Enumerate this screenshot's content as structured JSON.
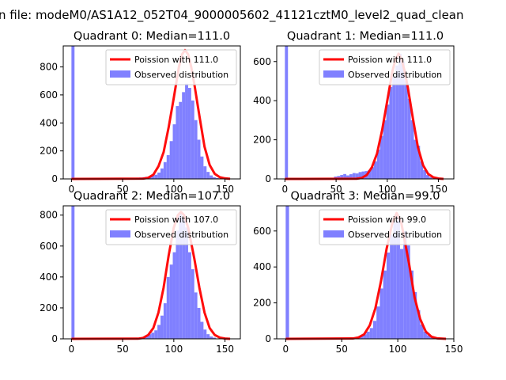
{
  "figure": {
    "suptitle": "n file: modeM0/AS1A12_052T04_9000005602_41121cztM0_level2_quad_clean"
  },
  "chart_data": [
    {
      "type": "histogram+line",
      "title": "Quadrant 0: Median=111.0",
      "median": 111.0,
      "xlim": [
        -8,
        165
      ],
      "ylim": [
        0,
        950
      ],
      "xticks": [
        0,
        50,
        100,
        150
      ],
      "yticks": [
        0,
        200,
        400,
        600,
        800
      ],
      "bin_width": 3,
      "hist": {
        "name": "Observed distribution",
        "color": "#8080ff",
        "bins": [
          {
            "x": 0,
            "y": 950
          },
          {
            "x": 63,
            "y": 8
          },
          {
            "x": 66,
            "y": 10
          },
          {
            "x": 69,
            "y": 12
          },
          {
            "x": 72,
            "y": 15
          },
          {
            "x": 75,
            "y": 18
          },
          {
            "x": 78,
            "y": 22
          },
          {
            "x": 81,
            "y": 30
          },
          {
            "x": 84,
            "y": 45
          },
          {
            "x": 87,
            "y": 75
          },
          {
            "x": 90,
            "y": 120
          },
          {
            "x": 93,
            "y": 170
          },
          {
            "x": 96,
            "y": 270
          },
          {
            "x": 99,
            "y": 390
          },
          {
            "x": 102,
            "y": 520
          },
          {
            "x": 105,
            "y": 550
          },
          {
            "x": 108,
            "y": 620
          },
          {
            "x": 111,
            "y": 680
          },
          {
            "x": 114,
            "y": 650
          },
          {
            "x": 117,
            "y": 560
          },
          {
            "x": 120,
            "y": 420
          },
          {
            "x": 123,
            "y": 280
          },
          {
            "x": 126,
            "y": 160
          },
          {
            "x": 129,
            "y": 90
          },
          {
            "x": 132,
            "y": 50
          },
          {
            "x": 135,
            "y": 25
          },
          {
            "x": 138,
            "y": 12
          },
          {
            "x": 141,
            "y": 6
          }
        ]
      },
      "curve": {
        "name": "Poission with 111.0",
        "color": "#ff0000",
        "x": [
          0,
          70,
          75,
          80,
          85,
          90,
          95,
          100,
          105,
          108,
          111,
          114,
          117,
          120,
          125,
          130,
          135,
          140,
          145,
          150,
          155
        ],
        "y": [
          0,
          2,
          8,
          30,
          90,
          190,
          370,
          580,
          800,
          890,
          920,
          890,
          800,
          680,
          450,
          230,
          100,
          36,
          12,
          4,
          1
        ]
      }
    },
    {
      "type": "histogram+line",
      "title": "Quadrant 1: Median=111.0",
      "median": 111.0,
      "xlim": [
        -8,
        165
      ],
      "ylim": [
        0,
        680
      ],
      "xticks": [
        0,
        50,
        100,
        150
      ],
      "yticks": [
        0,
        200,
        400,
        600
      ],
      "bin_width": 3,
      "hist": {
        "name": "Observed distribution",
        "color": "#8080ff",
        "bins": [
          {
            "x": 0,
            "y": 680
          },
          {
            "x": 48,
            "y": 12
          },
          {
            "x": 51,
            "y": 15
          },
          {
            "x": 54,
            "y": 20
          },
          {
            "x": 57,
            "y": 25
          },
          {
            "x": 60,
            "y": 18
          },
          {
            "x": 63,
            "y": 24
          },
          {
            "x": 66,
            "y": 30
          },
          {
            "x": 69,
            "y": 28
          },
          {
            "x": 72,
            "y": 35
          },
          {
            "x": 75,
            "y": 38
          },
          {
            "x": 78,
            "y": 40
          },
          {
            "x": 81,
            "y": 45
          },
          {
            "x": 84,
            "y": 60
          },
          {
            "x": 87,
            "y": 90
          },
          {
            "x": 90,
            "y": 150
          },
          {
            "x": 93,
            "y": 220
          },
          {
            "x": 96,
            "y": 300
          },
          {
            "x": 99,
            "y": 380
          },
          {
            "x": 102,
            "y": 470
          },
          {
            "x": 105,
            "y": 520
          },
          {
            "x": 108,
            "y": 580
          },
          {
            "x": 111,
            "y": 640
          },
          {
            "x": 114,
            "y": 600
          },
          {
            "x": 117,
            "y": 500
          },
          {
            "x": 120,
            "y": 410
          },
          {
            "x": 123,
            "y": 300
          },
          {
            "x": 126,
            "y": 200
          },
          {
            "x": 129,
            "y": 170
          },
          {
            "x": 132,
            "y": 90
          },
          {
            "x": 135,
            "y": 45
          },
          {
            "x": 138,
            "y": 20
          },
          {
            "x": 141,
            "y": 8
          }
        ]
      },
      "curve": {
        "name": "Poission with 111.0",
        "color": "#ff0000",
        "x": [
          0,
          70,
          75,
          80,
          85,
          90,
          95,
          100,
          105,
          108,
          111,
          114,
          117,
          120,
          125,
          130,
          135,
          140,
          145,
          150,
          155
        ],
        "y": [
          0,
          1,
          5,
          20,
          60,
          130,
          250,
          400,
          550,
          610,
          640,
          610,
          550,
          470,
          310,
          160,
          70,
          25,
          8,
          2,
          0
        ]
      }
    },
    {
      "type": "histogram+line",
      "title": "Quadrant 2: Median=107.0",
      "median": 107.0,
      "xlim": [
        -8,
        165
      ],
      "ylim": [
        0,
        860
      ],
      "xticks": [
        0,
        50,
        100,
        150
      ],
      "yticks": [
        0,
        200,
        400,
        600,
        800
      ],
      "bin_width": 3,
      "hist": {
        "name": "Observed distribution",
        "color": "#8080ff",
        "bins": [
          {
            "x": 0,
            "y": 860
          },
          {
            "x": 63,
            "y": 5
          },
          {
            "x": 66,
            "y": 8
          },
          {
            "x": 69,
            "y": 12
          },
          {
            "x": 72,
            "y": 20
          },
          {
            "x": 75,
            "y": 30
          },
          {
            "x": 78,
            "y": 40
          },
          {
            "x": 81,
            "y": 55
          },
          {
            "x": 84,
            "y": 90
          },
          {
            "x": 87,
            "y": 150
          },
          {
            "x": 90,
            "y": 230
          },
          {
            "x": 93,
            "y": 400
          },
          {
            "x": 96,
            "y": 480
          },
          {
            "x": 99,
            "y": 560
          },
          {
            "x": 102,
            "y": 700
          },
          {
            "x": 105,
            "y": 820
          },
          {
            "x": 108,
            "y": 780
          },
          {
            "x": 111,
            "y": 720
          },
          {
            "x": 114,
            "y": 560
          },
          {
            "x": 117,
            "y": 450
          },
          {
            "x": 120,
            "y": 300
          },
          {
            "x": 123,
            "y": 200
          },
          {
            "x": 126,
            "y": 110
          },
          {
            "x": 129,
            "y": 60
          },
          {
            "x": 132,
            "y": 30
          },
          {
            "x": 135,
            "y": 15
          },
          {
            "x": 138,
            "y": 8
          }
        ]
      },
      "curve": {
        "name": "Poission with 107.0",
        "color": "#ff0000",
        "x": [
          0,
          65,
          70,
          75,
          80,
          85,
          90,
          95,
          100,
          104,
          107,
          110,
          114,
          120,
          125,
          130,
          135,
          140,
          145,
          150,
          155
        ],
        "y": [
          0,
          1,
          6,
          25,
          70,
          170,
          330,
          540,
          720,
          800,
          820,
          800,
          720,
          520,
          330,
          170,
          70,
          25,
          8,
          2,
          0
        ]
      }
    },
    {
      "type": "histogram+line",
      "title": "Quadrant 3: Median=99.0",
      "median": 99.0,
      "xlim": [
        -8,
        150
      ],
      "ylim": [
        0,
        740
      ],
      "xticks": [
        0,
        50,
        100,
        150
      ],
      "yticks": [
        0,
        200,
        400,
        600
      ],
      "bin_width": 3,
      "hist": {
        "name": "Observed distribution",
        "color": "#8080ff",
        "bins": [
          {
            "x": 0,
            "y": 740
          },
          {
            "x": 57,
            "y": 4
          },
          {
            "x": 60,
            "y": 6
          },
          {
            "x": 63,
            "y": 10
          },
          {
            "x": 66,
            "y": 15
          },
          {
            "x": 69,
            "y": 25
          },
          {
            "x": 72,
            "y": 40
          },
          {
            "x": 75,
            "y": 60
          },
          {
            "x": 78,
            "y": 100
          },
          {
            "x": 81,
            "y": 180
          },
          {
            "x": 84,
            "y": 280
          },
          {
            "x": 87,
            "y": 380
          },
          {
            "x": 90,
            "y": 480
          },
          {
            "x": 93,
            "y": 580
          },
          {
            "x": 96,
            "y": 650
          },
          {
            "x": 99,
            "y": 690
          },
          {
            "x": 102,
            "y": 500
          },
          {
            "x": 105,
            "y": 600
          },
          {
            "x": 108,
            "y": 520
          },
          {
            "x": 111,
            "y": 380
          },
          {
            "x": 114,
            "y": 260
          },
          {
            "x": 117,
            "y": 160
          },
          {
            "x": 120,
            "y": 80
          },
          {
            "x": 123,
            "y": 40
          },
          {
            "x": 126,
            "y": 20
          },
          {
            "x": 129,
            "y": 10
          },
          {
            "x": 132,
            "y": 5
          }
        ]
      },
      "curve": {
        "name": "Poission with 99.0",
        "color": "#ff0000",
        "x": [
          0,
          60,
          65,
          70,
          75,
          80,
          85,
          90,
          95,
          99,
          103,
          107,
          110,
          115,
          120,
          125,
          130,
          135,
          140,
          143
        ],
        "y": [
          0,
          2,
          8,
          25,
          75,
          170,
          320,
          500,
          640,
          700,
          650,
          520,
          420,
          230,
          110,
          40,
          12,
          3,
          1,
          0
        ]
      }
    }
  ]
}
